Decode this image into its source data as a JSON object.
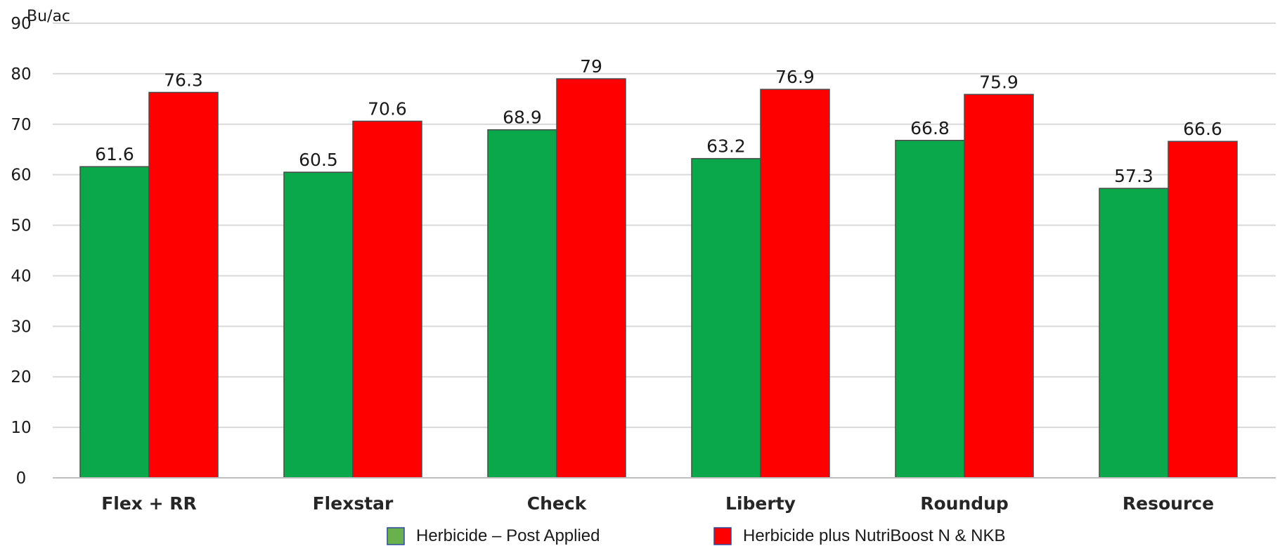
{
  "chart_data": {
    "type": "bar",
    "ylabel": "Bu/ac",
    "ylim": [
      0,
      90
    ],
    "yticks": [
      0,
      10,
      20,
      30,
      40,
      50,
      60,
      70,
      80,
      90
    ],
    "grid": true,
    "legend_position": "bottom",
    "categories": [
      "Flex + RR",
      "Flexstar",
      "Check",
      "Liberty",
      "Roundup",
      "Resource"
    ],
    "series": [
      {
        "name": "Herbicide – Post Applied",
        "color": "#0aa84a",
        "values": [
          61.6,
          60.5,
          68.9,
          63.2,
          66.8,
          57.3
        ],
        "labels": [
          "61.6",
          "60.5",
          "68.9",
          "63.2",
          "66.8",
          "57.3"
        ]
      },
      {
        "name": "Herbicide plus NutriBoost N & NKB",
        "color": "#ff0000",
        "values": [
          76.3,
          70.6,
          79,
          76.9,
          75.9,
          66.6
        ],
        "labels": [
          "76.3",
          "70.6",
          "79",
          "76.9",
          "75.9",
          "66.6"
        ]
      }
    ]
  },
  "legend_colors": {
    "series0_swatch": "#6ab04c",
    "series1_swatch": "#ff0000",
    "swatch_border": "#2b4a9c"
  }
}
